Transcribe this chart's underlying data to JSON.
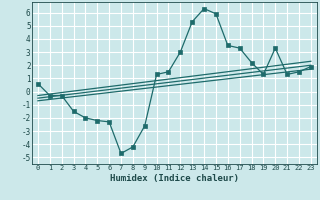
{
  "title": "",
  "xlabel": "Humidex (Indice chaleur)",
  "ylabel": "",
  "bg_color": "#cce8ea",
  "grid_color": "#ffffff",
  "line_color": "#1e6b6b",
  "marker_color": "#1e6b6b",
  "xlim": [
    -0.5,
    23.5
  ],
  "ylim": [
    -5.5,
    6.8
  ],
  "xticks": [
    0,
    1,
    2,
    3,
    4,
    5,
    6,
    7,
    8,
    9,
    10,
    11,
    12,
    13,
    14,
    15,
    16,
    17,
    18,
    19,
    20,
    21,
    22,
    23
  ],
  "yticks": [
    -5,
    -4,
    -3,
    -2,
    -1,
    0,
    1,
    2,
    3,
    4,
    5,
    6
  ],
  "main_x": [
    0,
    1,
    2,
    3,
    4,
    5,
    6,
    7,
    8,
    9,
    10,
    11,
    12,
    13,
    14,
    15,
    16,
    17,
    18,
    19,
    20,
    21,
    22,
    23
  ],
  "main_y": [
    0.6,
    -0.3,
    -0.3,
    -1.5,
    -2.0,
    -2.2,
    -2.3,
    -4.7,
    -4.2,
    -2.6,
    1.3,
    1.5,
    3.0,
    5.3,
    6.3,
    5.9,
    3.5,
    3.3,
    2.2,
    1.3,
    3.3,
    1.3,
    1.5,
    1.9
  ],
  "trend1_x": [
    0,
    23
  ],
  "trend1_y": [
    -0.3,
    2.3
  ],
  "trend2_x": [
    0,
    23
  ],
  "trend2_y": [
    -0.5,
    2.0
  ],
  "trend3_x": [
    0,
    23
  ],
  "trend3_y": [
    -0.7,
    1.7
  ]
}
